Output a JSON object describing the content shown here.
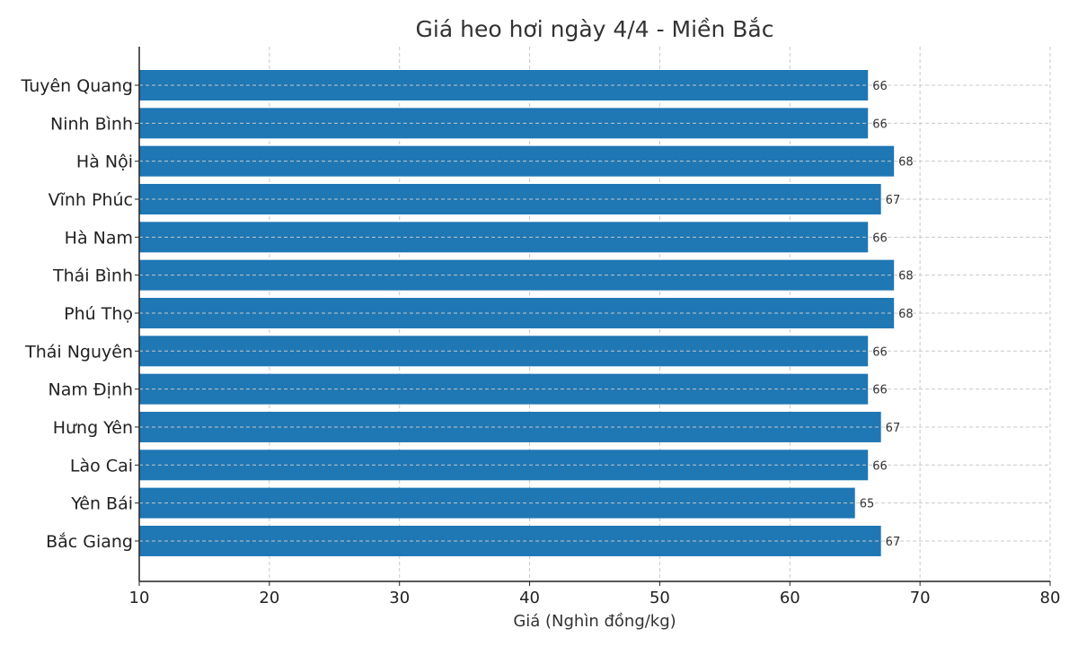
{
  "chart_data": {
    "type": "bar",
    "orientation": "horizontal",
    "title": "Giá heo hơi ngày 4/4 - Miền Bắc",
    "xlabel": "Giá (Nghìn đồng/kg)",
    "ylabel": "",
    "categories": [
      "Tuyên Quang",
      "Ninh Bình",
      "Hà Nội",
      "Vĩnh Phúc",
      "Hà Nam",
      "Thái Bình",
      "Phú Thọ",
      "Thái Nguyên",
      "Nam Định",
      "Hưng Yên",
      "Lào Cai",
      "Yên Bái",
      "Bắc Giang"
    ],
    "values": [
      66,
      66,
      68,
      67,
      66,
      68,
      68,
      66,
      66,
      67,
      66,
      65,
      67
    ],
    "xlim": [
      10,
      80
    ],
    "xticks": [
      10,
      20,
      30,
      40,
      50,
      60,
      70,
      80
    ],
    "grid": true,
    "data_labels": true,
    "bar_color": "#1f77b4"
  }
}
